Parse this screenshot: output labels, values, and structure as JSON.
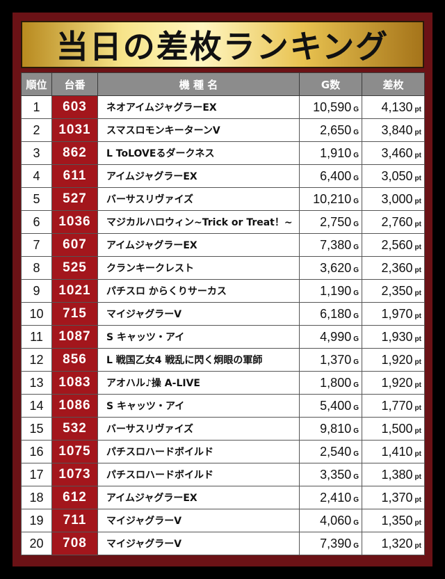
{
  "title": "当日の差枚ランキング",
  "headers": {
    "rank": "順位",
    "machine_no": "台番",
    "model": "機 種 名",
    "games": "G数",
    "diff": "差枚"
  },
  "units": {
    "games": "G",
    "diff": "pt"
  },
  "rows": [
    {
      "rank": "1",
      "no": "603",
      "name": "ネオアイムジャグラーEX",
      "games": "10,590",
      "diff": "4,130"
    },
    {
      "rank": "2",
      "no": "1031",
      "name": "スマスロモンキーターンV",
      "games": "2,650",
      "diff": "3,840"
    },
    {
      "rank": "3",
      "no": "862",
      "name": "L ToLOVEるダークネス",
      "games": "1,910",
      "diff": "3,460"
    },
    {
      "rank": "4",
      "no": "611",
      "name": "アイムジャグラーEX",
      "games": "6,400",
      "diff": "3,050"
    },
    {
      "rank": "5",
      "no": "527",
      "name": "バーサスリヴァイズ",
      "games": "10,210",
      "diff": "3,000"
    },
    {
      "rank": "6",
      "no": "1036",
      "name": "マジカルハロウィン~Trick or Treat！~",
      "games": "2,750",
      "diff": "2,760"
    },
    {
      "rank": "7",
      "no": "607",
      "name": "アイムジャグラーEX",
      "games": "7,380",
      "diff": "2,560"
    },
    {
      "rank": "8",
      "no": "525",
      "name": "クランキークレスト",
      "games": "3,620",
      "diff": "2,360"
    },
    {
      "rank": "9",
      "no": "1021",
      "name": "パチスロ からくりサーカス",
      "games": "1,190",
      "diff": "2,350"
    },
    {
      "rank": "10",
      "no": "715",
      "name": "マイジャグラーV",
      "games": "6,180",
      "diff": "1,970"
    },
    {
      "rank": "11",
      "no": "1087",
      "name": "S キャッツ・アイ",
      "games": "4,990",
      "diff": "1,930"
    },
    {
      "rank": "12",
      "no": "856",
      "name": "L 戦国乙女4 戦乱に閃く炯眼の軍師",
      "games": "1,370",
      "diff": "1,920"
    },
    {
      "rank": "13",
      "no": "1083",
      "name": "アオハル♪操 A-LIVE",
      "games": "1,800",
      "diff": "1,920"
    },
    {
      "rank": "14",
      "no": "1086",
      "name": "S キャッツ・アイ",
      "games": "5,400",
      "diff": "1,770"
    },
    {
      "rank": "15",
      "no": "532",
      "name": "バーサスリヴァイズ",
      "games": "9,810",
      "diff": "1,500"
    },
    {
      "rank": "16",
      "no": "1075",
      "name": "パチスロハードボイルド",
      "games": "2,540",
      "diff": "1,410"
    },
    {
      "rank": "17",
      "no": "1073",
      "name": "パチスロハードボイルド",
      "games": "3,350",
      "diff": "1,380"
    },
    {
      "rank": "18",
      "no": "612",
      "name": "アイムジャグラーEX",
      "games": "2,410",
      "diff": "1,370"
    },
    {
      "rank": "19",
      "no": "711",
      "name": "マイジャグラーV",
      "games": "4,060",
      "diff": "1,350"
    },
    {
      "rank": "20",
      "no": "708",
      "name": "マイジャグラーV",
      "games": "7,390",
      "diff": "1,320"
    }
  ],
  "colors": {
    "frame": "#6b1216",
    "number_cell": "#a3161c",
    "header": "#8c8c8c",
    "gold": "#f7e48a"
  }
}
